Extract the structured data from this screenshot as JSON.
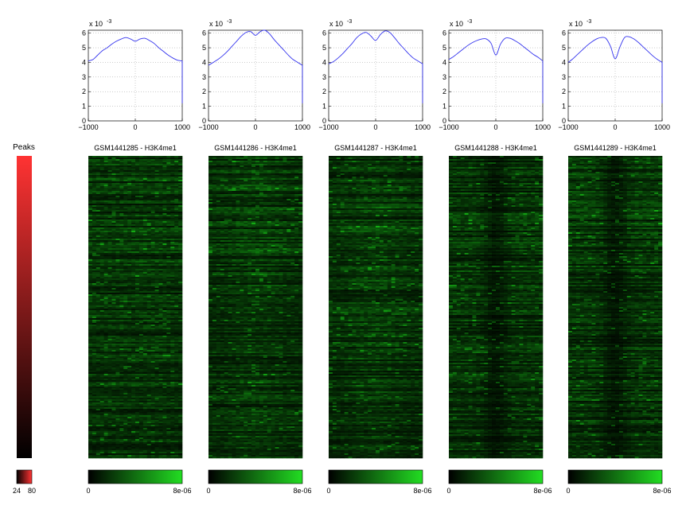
{
  "chart_data": [
    {
      "type": "line",
      "panels": [
        {
          "name": "GSM1441285 - H3K4me1",
          "x": [
            -1000,
            -900,
            -800,
            -700,
            -600,
            -500,
            -400,
            -300,
            -200,
            -100,
            0,
            100,
            200,
            300,
            400,
            500,
            600,
            700,
            800,
            900,
            1000
          ],
          "y": [
            4.1,
            4.2,
            4.5,
            4.8,
            5.0,
            5.25,
            5.45,
            5.6,
            5.7,
            5.6,
            5.45,
            5.6,
            5.65,
            5.5,
            5.3,
            5.0,
            4.75,
            4.5,
            4.3,
            4.15,
            4.1
          ]
        },
        {
          "name": "GSM1441286 - H3K4me1",
          "x": [
            -1000,
            -900,
            -800,
            -700,
            -600,
            -500,
            -400,
            -300,
            -200,
            -100,
            0,
            100,
            200,
            300,
            400,
            500,
            600,
            700,
            800,
            900,
            1000
          ],
          "y": [
            3.8,
            4.0,
            4.2,
            4.45,
            4.75,
            5.1,
            5.45,
            5.8,
            6.05,
            6.1,
            5.85,
            6.1,
            6.2,
            5.95,
            5.55,
            5.2,
            4.85,
            4.5,
            4.2,
            4.0,
            3.8
          ]
        },
        {
          "name": "GSM1441287 - H3K4me1",
          "x": [
            -1000,
            -900,
            -800,
            -700,
            -600,
            -500,
            -400,
            -300,
            -200,
            -100,
            0,
            100,
            200,
            300,
            400,
            500,
            600,
            700,
            800,
            900,
            1000
          ],
          "y": [
            3.9,
            4.05,
            4.3,
            4.6,
            4.95,
            5.3,
            5.7,
            5.95,
            6.05,
            5.8,
            5.5,
            5.9,
            6.15,
            6.05,
            5.7,
            5.3,
            4.95,
            4.6,
            4.3,
            4.1,
            3.9
          ]
        },
        {
          "name": "GSM1441288 - H3K4me1",
          "x": [
            -1000,
            -900,
            -800,
            -700,
            -600,
            -500,
            -400,
            -300,
            -200,
            -100,
            0,
            100,
            200,
            300,
            400,
            500,
            600,
            700,
            800,
            900,
            1000
          ],
          "y": [
            4.2,
            4.4,
            4.65,
            4.9,
            5.15,
            5.35,
            5.5,
            5.6,
            5.6,
            5.3,
            4.5,
            5.25,
            5.65,
            5.65,
            5.5,
            5.3,
            5.05,
            4.8,
            4.55,
            4.35,
            4.1
          ]
        },
        {
          "name": "GSM1441289 - H3K4me1",
          "x": [
            -1000,
            -900,
            -800,
            -700,
            -600,
            -500,
            -400,
            -300,
            -200,
            -100,
            0,
            100,
            200,
            300,
            400,
            500,
            600,
            700,
            800,
            900,
            1000
          ],
          "y": [
            4.0,
            4.25,
            4.55,
            4.85,
            5.15,
            5.4,
            5.6,
            5.7,
            5.65,
            5.1,
            4.25,
            5.05,
            5.7,
            5.75,
            5.6,
            5.35,
            5.05,
            4.75,
            4.45,
            4.2,
            4.0
          ]
        }
      ],
      "scale_label": "x 10",
      "scale_exponent": "-3",
      "xlim": [
        -1000,
        1000
      ],
      "ylim": [
        0,
        6.2
      ],
      "x_ticks": [
        "−1000",
        "0",
        "1000"
      ],
      "y_ticks": [
        "0",
        "1",
        "2",
        "3",
        "4",
        "5",
        "6"
      ],
      "grid": true
    },
    {
      "type": "heatmap",
      "titles": [
        "GSM1441285 - H3K4me1",
        "GSM1441286 - H3K4me1",
        "GSM1441287 - H3K4me1",
        "GSM1441288 - H3K4me1",
        "GSM1441289 - H3K4me1"
      ],
      "profiles": [
        "flat",
        "center-peak",
        "center-peak",
        "center-dip",
        "center-dip"
      ],
      "colorbar": {
        "min_label": "0",
        "max_label": "8e-06",
        "min_color": "#000000",
        "max_color": "#22dd22"
      }
    },
    {
      "type": "heatmap",
      "title": "Peaks",
      "colorbar": {
        "min_label": "24",
        "max_label": "80",
        "min_color": "#000000",
        "max_color": "#ff3333"
      }
    }
  ]
}
